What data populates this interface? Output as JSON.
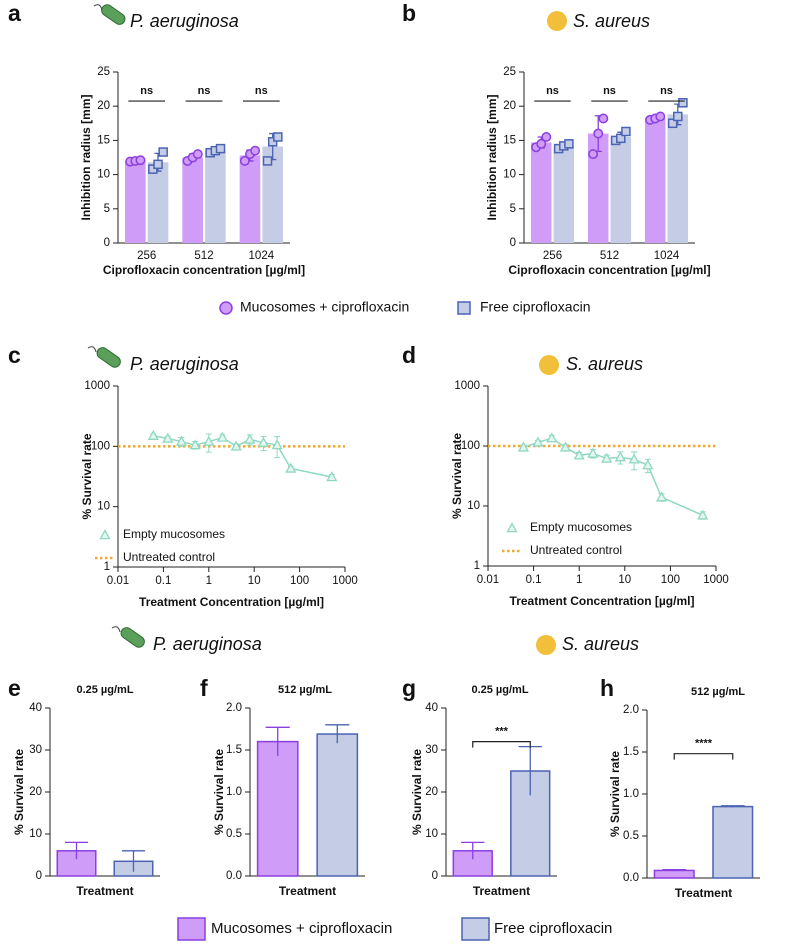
{
  "chart_data": [
    {
      "type": "bar",
      "label": "a",
      "title": "P. aeruginosa",
      "xlabel": "Ciprofloxacin concentration [µg/ml]",
      "ylabel": "Inhibition radius [mm]",
      "categories": [
        "256",
        "512",
        "1024"
      ],
      "ylim": [
        0,
        25
      ],
      "yticks": [
        0,
        5,
        10,
        15,
        20,
        25
      ],
      "series": [
        {
          "name": "Mucosomes + ciprofloxacin",
          "marker": "circle",
          "color": "#cf9cf7",
          "edge_color": "#8b3fe0",
          "values": [
            12,
            12.5,
            12.8
          ],
          "errors": [
            0.1,
            0.5,
            0.8
          ],
          "points": [
            [
              11.9,
              12,
              12.1
            ],
            [
              12,
              12.5,
              13
            ],
            [
              12,
              13,
              13.5
            ]
          ]
        },
        {
          "name": "Free ciprofloxacin",
          "marker": "square",
          "color": "#c5cde6",
          "edge_color": "#4a63b3",
          "values": [
            11.8,
            13.5,
            14.1
          ],
          "errors": [
            1.3,
            0.3,
            1.9
          ],
          "points": [
            [
              10.8,
              11.5,
              13.3
            ],
            [
              13.2,
              13.5,
              13.8
            ],
            [
              12,
              14.8,
              15.5
            ]
          ]
        }
      ],
      "annotations": [
        "ns",
        "ns",
        "ns"
      ]
    },
    {
      "type": "bar",
      "label": "b",
      "title": "S. aureus",
      "xlabel": "Ciprofloxacin concentration [µg/ml]",
      "ylabel": "Inhibition radius [mm]",
      "categories": [
        "256",
        "512",
        "1024"
      ],
      "ylim": [
        0,
        25
      ],
      "yticks": [
        0,
        5,
        10,
        15,
        20,
        25
      ],
      "series": [
        {
          "marker": "circle",
          "color": "#cf9cf7",
          "edge_color": "#8b3fe0",
          "values": [
            14.7,
            16,
            18.2
          ],
          "errors": [
            0.8,
            2.6,
            0.3
          ],
          "points": [
            [
              14,
              14.5,
              15.5
            ],
            [
              13,
              16,
              18.2
            ],
            [
              18,
              18.2,
              18.5
            ]
          ]
        },
        {
          "marker": "square",
          "color": "#c5cde6",
          "edge_color": "#4a63b3",
          "values": [
            14.2,
            15.5,
            18.8
          ],
          "errors": [
            0.4,
            0.7,
            1.5
          ],
          "points": [
            [
              13.8,
              14.2,
              14.5
            ],
            [
              15,
              15.3,
              16.3
            ],
            [
              17.5,
              18.5,
              20.5
            ]
          ]
        }
      ],
      "annotations": [
        "ns",
        "ns",
        "ns"
      ]
    },
    {
      "type": "line",
      "label": "c",
      "title": "P. aeruginosa",
      "xlabel": "Treatment Concentration [µg/ml]",
      "ylabel": "% Survival rate",
      "xscale": "log",
      "yscale": "log",
      "xlim": [
        0.01,
        1000
      ],
      "xticks": [
        0.01,
        0.1,
        1,
        10,
        100,
        1000
      ],
      "ylim": [
        1,
        1000
      ],
      "yticks": [
        1,
        10,
        100,
        1000
      ],
      "x": [
        0.06,
        0.125,
        0.25,
        0.5,
        1,
        2,
        4,
        8,
        16,
        32,
        64,
        512
      ],
      "series": [
        {
          "name": "Empty mucosomes",
          "color": "#8fd8c2",
          "values": [
            150,
            135,
            120,
            105,
            120,
            140,
            100,
            130,
            115,
            105,
            43,
            31
          ],
          "errors": [
            10,
            10,
            20,
            15,
            40,
            15,
            10,
            25,
            30,
            40,
            3,
            3
          ]
        }
      ],
      "reference_lines": [
        {
          "name": "Untreated control",
          "value": 100,
          "color": "#f0a830"
        }
      ]
    },
    {
      "type": "line",
      "label": "d",
      "title": "S. aureus",
      "xlabel": "Treatment Concentration [µg/ml]",
      "ylabel": "% Survival rate",
      "xscale": "log",
      "yscale": "log",
      "xlim": [
        0.01,
        1000
      ],
      "xticks": [
        0.01,
        0.1,
        1,
        10,
        100,
        1000
      ],
      "ylim": [
        1,
        1000
      ],
      "yticks": [
        1,
        10,
        100,
        1000
      ],
      "x": [
        0.06,
        0.125,
        0.25,
        0.5,
        1,
        2,
        4,
        8,
        16,
        32,
        64,
        512
      ],
      "series": [
        {
          "name": "Empty mucosomes",
          "color": "#8fd8c2",
          "values": [
            95,
            115,
            135,
            95,
            70,
            75,
            62,
            65,
            60,
            48,
            14,
            7
          ],
          "errors": [
            8,
            8,
            15,
            10,
            8,
            12,
            8,
            15,
            20,
            12,
            2,
            1
          ]
        }
      ],
      "reference_lines": [
        {
          "name": "Untreated control",
          "value": 100,
          "color": "#f0a830"
        }
      ]
    },
    {
      "type": "bar",
      "label": "e",
      "subtitle": "0.25 µg/mL",
      "xlabel": "Treatment",
      "ylabel": "% Survival rate",
      "ylim": [
        0,
        40
      ],
      "yticks": [
        0,
        10,
        20,
        30,
        40
      ],
      "series": [
        {
          "name": "Mucosomes + ciprofloxacin",
          "color": "#cf9cf7",
          "edge_color": "#8b3fe0",
          "values": [
            6
          ],
          "errors": [
            2
          ]
        },
        {
          "name": "Free ciprofloxacin",
          "color": "#c5cde6",
          "edge_color": "#4a63b3",
          "values": [
            3.5
          ],
          "errors": [
            2.5
          ]
        }
      ]
    },
    {
      "type": "bar",
      "label": "f",
      "subtitle": "512 µg/mL",
      "xlabel": "Treatment",
      "ylabel": "% Survival rate",
      "ylim": [
        0,
        2
      ],
      "yticks": [
        {
          "value": 0,
          "label": "0.0"
        },
        0.5,
        {
          "value": 1,
          "label": "1.0"
        },
        1.5,
        {
          "value": 2,
          "label": "2.0"
        }
      ],
      "series": [
        {
          "color": "#cf9cf7",
          "edge_color": "#8b3fe0",
          "values": [
            1.6
          ],
          "errors": [
            0.17
          ]
        },
        {
          "color": "#c5cde6",
          "edge_color": "#4a63b3",
          "values": [
            1.69
          ],
          "errors": [
            0.11
          ]
        }
      ]
    },
    {
      "type": "bar",
      "label": "g",
      "subtitle": "0.25 µg/mL",
      "xlabel": "Treatment",
      "ylabel": "% Survival rate",
      "ylim": [
        0,
        40
      ],
      "yticks": [
        0,
        10,
        20,
        30,
        40
      ],
      "series": [
        {
          "color": "#cf9cf7",
          "edge_color": "#8b3fe0",
          "values": [
            6
          ],
          "errors": [
            2
          ]
        },
        {
          "color": "#c5cde6",
          "edge_color": "#4a63b3",
          "values": [
            25
          ],
          "errors": [
            5.8
          ]
        }
      ],
      "annotations": [
        "***"
      ]
    },
    {
      "type": "bar",
      "label": "h",
      "subtitle": "512 µg/mL",
      "xlabel": "Treatment",
      "ylabel": "% Survival rate",
      "ylim": [
        0,
        2
      ],
      "yticks": [
        {
          "value": 0,
          "label": "0.0"
        },
        0.5,
        {
          "value": 1,
          "label": "1.0"
        },
        1.5,
        {
          "value": 2,
          "label": "2.0"
        }
      ],
      "series": [
        {
          "color": "#cf9cf7",
          "edge_color": "#8b3fe0",
          "values": [
            0.09
          ],
          "errors": [
            0.01
          ]
        },
        {
          "color": "#c5cde6",
          "edge_color": "#4a63b3",
          "values": [
            0.85
          ],
          "errors": [
            0.01
          ]
        }
      ],
      "annotations": [
        "****"
      ]
    }
  ],
  "group_titles": [
    "P. aeruginosa",
    "S. aureus"
  ]
}
